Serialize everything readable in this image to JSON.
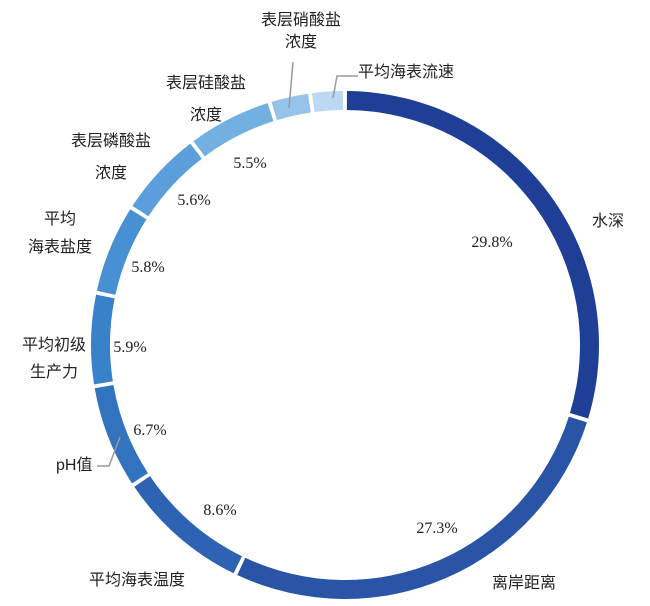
{
  "chart_data": {
    "type": "pie",
    "title": "",
    "categories": [
      "水深",
      "离岸距离",
      "平均海表温度",
      "pH值",
      "平均初级生产力",
      "平均海表盐度",
      "表层磷酸盐浓度",
      "表层硅酸盐浓度",
      "表层硝酸盐浓度",
      "平均海表流速"
    ],
    "values": [
      29.8,
      27.3,
      8.6,
      6.7,
      5.9,
      5.8,
      5.6,
      5.5,
      2.6,
      2.2
    ],
    "value_labels": [
      "29.8%",
      "27.3%",
      "8.6%",
      "6.7%",
      "5.9%",
      "5.8%",
      "5.6%",
      "5.5%",
      "",
      ""
    ],
    "category_label_lines": [
      [
        "水深"
      ],
      [
        "离岸距离"
      ],
      [
        "平均海表温度"
      ],
      [
        "pH值"
      ],
      [
        "平均初级",
        "生产力"
      ],
      [
        "平均",
        "海表盐度"
      ],
      [
        "表层磷酸盐",
        "浓度"
      ],
      [
        "表层硅酸盐",
        "浓度"
      ],
      [
        "表层硝酸盐",
        "浓度"
      ],
      [
        "平均海表流速"
      ]
    ],
    "colors": [
      "#1f3f97",
      "#2a55a7",
      "#2d63b2",
      "#3273bf",
      "#3981c8",
      "#4690d3",
      "#5a9fdb",
      "#73b0e2",
      "#95c3ea",
      "#bcd8f2"
    ],
    "donut": true,
    "legend": "none"
  }
}
